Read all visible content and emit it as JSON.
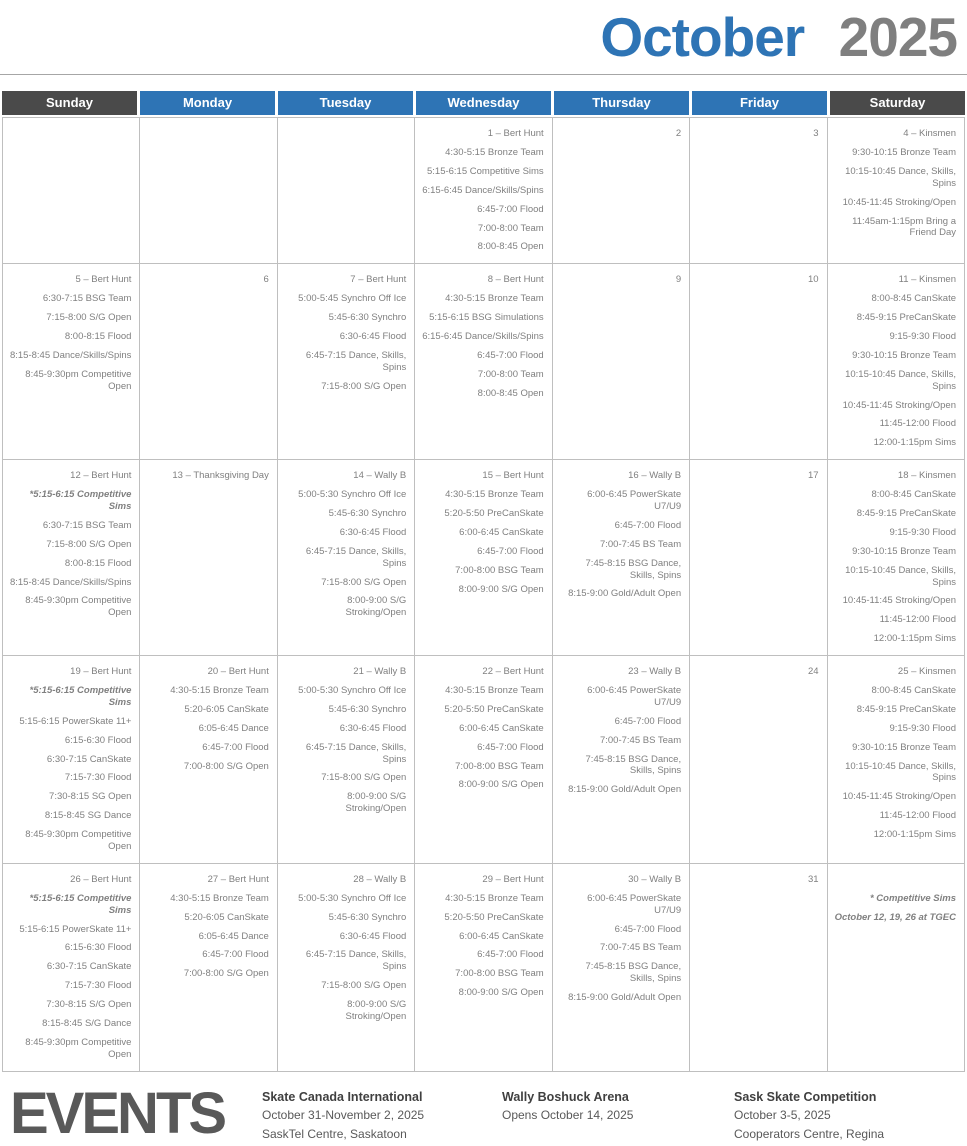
{
  "title": {
    "month": "October",
    "year": "2025"
  },
  "colors": {
    "title_blue": "#2e74b5",
    "title_gray": "#7f7f7f",
    "header_blue": "#2e74b5",
    "header_dark": "#4a4a4a",
    "grid_border": "#bfbfbf",
    "body_text": "#808080",
    "events_gray": "#595959"
  },
  "calendar": {
    "day_headers": [
      {
        "label": "Sunday",
        "style": "dark"
      },
      {
        "label": "Monday",
        "style": "blue"
      },
      {
        "label": "Tuesday",
        "style": "blue"
      },
      {
        "label": "Wednesday",
        "style": "blue"
      },
      {
        "label": "Thursday",
        "style": "blue"
      },
      {
        "label": "Friday",
        "style": "blue"
      },
      {
        "label": "Saturday",
        "style": "dark"
      }
    ],
    "weeks": [
      [
        {
          "d": "",
          "ev": []
        },
        {
          "d": "",
          "ev": []
        },
        {
          "d": "",
          "ev": []
        },
        {
          "d": "1 – Bert Hunt",
          "ev": [
            {
              "t": "4:30-5:15 Bronze Team"
            },
            {
              "t": "5:15-6:15 Competitive Sims"
            },
            {
              "t": "6:15-6:45 Dance/Skills/Spins"
            },
            {
              "t": "6:45-7:00 Flood"
            },
            {
              "t": "7:00-8:00 Team"
            },
            {
              "t": "8:00-8:45 Open"
            }
          ]
        },
        {
          "d": "2",
          "ev": []
        },
        {
          "d": "3",
          "ev": []
        },
        {
          "d": "4 – Kinsmen",
          "ev": [
            {
              "t": "9:30-10:15 Bronze Team"
            },
            {
              "t": "10:15-10:45 Dance, Skills, Spins"
            },
            {
              "t": "10:45-11:45 Stroking/Open"
            },
            {
              "t": "11:45am-1:15pm Bring a Friend Day"
            }
          ]
        }
      ],
      [
        {
          "d": "5 – Bert Hunt",
          "ev": [
            {
              "t": "6:30-7:15 BSG Team"
            },
            {
              "t": "7:15-8:00 S/G Open"
            },
            {
              "t": "8:00-8:15 Flood"
            },
            {
              "t": "8:15-8:45 Dance/Skills/Spins"
            },
            {
              "t": "8:45-9:30pm Competitive Open"
            }
          ]
        },
        {
          "d": "6",
          "ev": []
        },
        {
          "d": "7 – Bert Hunt",
          "ev": [
            {
              "t": "5:00-5:45 Synchro Off Ice"
            },
            {
              "t": "5:45-6:30 Synchro"
            },
            {
              "t": "6:30-6:45 Flood"
            },
            {
              "t": "6:45-7:15 Dance, Skills, Spins"
            },
            {
              "t": "7:15-8:00 S/G Open"
            }
          ]
        },
        {
          "d": "8 – Bert Hunt",
          "ev": [
            {
              "t": "4:30-5:15 Bronze Team"
            },
            {
              "t": "5:15-6:15 BSG Simulations"
            },
            {
              "t": "6:15-6:45 Dance/Skills/Spins"
            },
            {
              "t": "6:45-7:00 Flood"
            },
            {
              "t": "7:00-8:00 Team"
            },
            {
              "t": "8:00-8:45 Open"
            }
          ]
        },
        {
          "d": "9",
          "ev": []
        },
        {
          "d": "10",
          "ev": []
        },
        {
          "d": "11 – Kinsmen",
          "ev": [
            {
              "t": "8:00-8:45 CanSkate"
            },
            {
              "t": "8:45-9:15 PreCanSkate"
            },
            {
              "t": "9:15-9:30 Flood"
            },
            {
              "t": "9:30-10:15 Bronze Team"
            },
            {
              "t": "10:15-10:45 Dance, Skills, Spins"
            },
            {
              "t": "10:45-11:45 Stroking/Open"
            },
            {
              "t": "11:45-12:00 Flood"
            },
            {
              "t": "12:00-1:15pm Sims"
            }
          ]
        }
      ],
      [
        {
          "d": "12 – Bert Hunt",
          "ev": [
            {
              "t": "*5:15-6:15 Competitive Sims",
              "em": true
            },
            {
              "t": "6:30-7:15 BSG Team"
            },
            {
              "t": "7:15-8:00 S/G Open"
            },
            {
              "t": "8:00-8:15 Flood"
            },
            {
              "t": "8:15-8:45 Dance/Skills/Spins"
            },
            {
              "t": "8:45-9:30pm Competitive Open"
            }
          ]
        },
        {
          "d": "13 – Thanksgiving Day",
          "ev": []
        },
        {
          "d": "14 – Wally B",
          "ev": [
            {
              "t": "5:00-5:30 Synchro Off Ice"
            },
            {
              "t": "5:45-6:30 Synchro"
            },
            {
              "t": "6:30-6:45 Flood"
            },
            {
              "t": "6:45-7:15 Dance, Skills, Spins"
            },
            {
              "t": "7:15-8:00 S/G Open"
            },
            {
              "t": "8:00-9:00 S/G Stroking/Open"
            }
          ]
        },
        {
          "d": "15 – Bert Hunt",
          "ev": [
            {
              "t": "4:30-5:15 Bronze Team"
            },
            {
              "t": "5:20-5:50 PreCanSkate"
            },
            {
              "t": "6:00-6:45 CanSkate"
            },
            {
              "t": "6:45-7:00 Flood"
            },
            {
              "t": "7:00-8:00 BSG Team"
            },
            {
              "t": "8:00-9:00 S/G Open"
            }
          ]
        },
        {
          "d": "16 – Wally B",
          "ev": [
            {
              "t": "6:00-6:45 PowerSkate U7/U9"
            },
            {
              "t": "6:45-7:00 Flood"
            },
            {
              "t": "7:00-7:45 BS Team"
            },
            {
              "t": "7:45-8:15 BSG Dance, Skills, Spins"
            },
            {
              "t": "8:15-9:00 Gold/Adult Open"
            }
          ]
        },
        {
          "d": "17",
          "ev": []
        },
        {
          "d": "18 – Kinsmen",
          "ev": [
            {
              "t": "8:00-8:45 CanSkate"
            },
            {
              "t": "8:45-9:15 PreCanSkate"
            },
            {
              "t": "9:15-9:30 Flood"
            },
            {
              "t": "9:30-10:15 Bronze Team"
            },
            {
              "t": "10:15-10:45 Dance, Skills, Spins"
            },
            {
              "t": "10:45-11:45 Stroking/Open"
            },
            {
              "t": "11:45-12:00 Flood"
            },
            {
              "t": "12:00-1:15pm Sims"
            }
          ]
        }
      ],
      [
        {
          "d": "19 – Bert Hunt",
          "ev": [
            {
              "t": "*5:15-6:15 Competitive Sims",
              "em": true
            },
            {
              "t": "5:15-6:15 PowerSkate 11+"
            },
            {
              "t": "6:15-6:30 Flood"
            },
            {
              "t": "6:30-7:15 CanSkate"
            },
            {
              "t": "7:15-7:30 Flood"
            },
            {
              "t": "7:30-8:15 SG Open"
            },
            {
              "t": "8:15-8:45 SG Dance"
            },
            {
              "t": "8:45-9:30pm Competitive Open"
            }
          ]
        },
        {
          "d": "20 – Bert Hunt",
          "ev": [
            {
              "t": "4:30-5:15 Bronze Team"
            },
            {
              "t": "5:20-6:05 CanSkate"
            },
            {
              "t": "6:05-6:45 Dance"
            },
            {
              "t": "6:45-7:00 Flood"
            },
            {
              "t": "7:00-8:00 S/G Open"
            }
          ]
        },
        {
          "d": "21 – Wally B",
          "ev": [
            {
              "t": "5:00-5:30 Synchro Off Ice"
            },
            {
              "t": "5:45-6:30 Synchro"
            },
            {
              "t": "6:30-6:45 Flood"
            },
            {
              "t": "6:45-7:15 Dance, Skills, Spins"
            },
            {
              "t": "7:15-8:00 S/G Open"
            },
            {
              "t": "8:00-9:00 S/G Stroking/Open"
            }
          ]
        },
        {
          "d": "22 – Bert Hunt",
          "ev": [
            {
              "t": "4:30-5:15 Bronze Team"
            },
            {
              "t": "5:20-5:50 PreCanSkate"
            },
            {
              "t": "6:00-6:45 CanSkate"
            },
            {
              "t": "6:45-7:00 Flood"
            },
            {
              "t": "7:00-8:00 BSG Team"
            },
            {
              "t": "8:00-9:00 S/G Open"
            }
          ]
        },
        {
          "d": "23 – Wally B",
          "ev": [
            {
              "t": "6:00-6:45 PowerSkate U7/U9"
            },
            {
              "t": "6:45-7:00 Flood"
            },
            {
              "t": "7:00-7:45 BS Team"
            },
            {
              "t": "7:45-8:15 BSG Dance, Skills, Spins"
            },
            {
              "t": "8:15-9:00 Gold/Adult Open"
            }
          ]
        },
        {
          "d": "24",
          "ev": []
        },
        {
          "d": "25 – Kinsmen",
          "ev": [
            {
              "t": "8:00-8:45 CanSkate"
            },
            {
              "t": "8:45-9:15 PreCanSkate"
            },
            {
              "t": "9:15-9:30 Flood"
            },
            {
              "t": "9:30-10:15 Bronze Team"
            },
            {
              "t": "10:15-10:45 Dance, Skills, Spins"
            },
            {
              "t": "10:45-11:45 Stroking/Open"
            },
            {
              "t": "11:45-12:00 Flood"
            },
            {
              "t": "12:00-1:15pm Sims"
            }
          ]
        }
      ],
      [
        {
          "d": "26 – Bert Hunt",
          "ev": [
            {
              "t": "*5:15-6:15 Competitive Sims",
              "em": true
            },
            {
              "t": "5:15-6:15 PowerSkate 11+"
            },
            {
              "t": "6:15-6:30 Flood"
            },
            {
              "t": "6:30-7:15 CanSkate"
            },
            {
              "t": "7:15-7:30 Flood"
            },
            {
              "t": "7:30-8:15 S/G Open"
            },
            {
              "t": "8:15-8:45 S/G Dance"
            },
            {
              "t": "8:45-9:30pm Competitive Open"
            }
          ]
        },
        {
          "d": "27 – Bert Hunt",
          "ev": [
            {
              "t": "4:30-5:15 Bronze Team"
            },
            {
              "t": "5:20-6:05 CanSkate"
            },
            {
              "t": "6:05-6:45 Dance"
            },
            {
              "t": "6:45-7:00 Flood"
            },
            {
              "t": "7:00-8:00 S/G Open"
            }
          ]
        },
        {
          "d": "28 – Wally B",
          "ev": [
            {
              "t": "5:00-5:30 Synchro Off Ice"
            },
            {
              "t": "5:45-6:30 Synchro"
            },
            {
              "t": "6:30-6:45 Flood"
            },
            {
              "t": "6:45-7:15 Dance, Skills, Spins"
            },
            {
              "t": "7:15-8:00 S/G Open"
            },
            {
              "t": "8:00-9:00 S/G Stroking/Open"
            }
          ]
        },
        {
          "d": "29 – Bert Hunt",
          "ev": [
            {
              "t": "4:30-5:15 Bronze Team"
            },
            {
              "t": "5:20-5:50 PreCanSkate"
            },
            {
              "t": "6:00-6:45 CanSkate"
            },
            {
              "t": "6:45-7:00 Flood"
            },
            {
              "t": "7:00-8:00 BSG Team"
            },
            {
              "t": "8:00-9:00 S/G Open"
            }
          ]
        },
        {
          "d": "30 – Wally B",
          "ev": [
            {
              "t": "6:00-6:45 PowerSkate U7/U9"
            },
            {
              "t": "6:45-7:00 Flood"
            },
            {
              "t": "7:00-7:45 BS Team"
            },
            {
              "t": "7:45-8:15 BSG Dance, Skills, Spins"
            },
            {
              "t": "8:15-9:00 Gold/Adult Open"
            }
          ]
        },
        {
          "d": "31",
          "ev": []
        },
        {
          "d": "",
          "ev": [
            {
              "t": "* Competitive Sims",
              "em": true
            },
            {
              "t": "October 12, 19, 26 at TGEC",
              "em": true
            }
          ]
        }
      ]
    ]
  },
  "events_section": {
    "heading": "EVENTS",
    "items": [
      {
        "title": "Skate Canada International",
        "lines": [
          "October 31-November 2, 2025",
          "SaskTel Centre, Saskatoon"
        ]
      },
      {
        "title": "Wally Boshuck Arena",
        "lines": [
          "Opens October 14, 2025"
        ]
      },
      {
        "title": "Sask Skate Competition",
        "lines": [
          "October 3-5, 2025",
          "Cooperators Centre, Regina"
        ]
      }
    ]
  }
}
